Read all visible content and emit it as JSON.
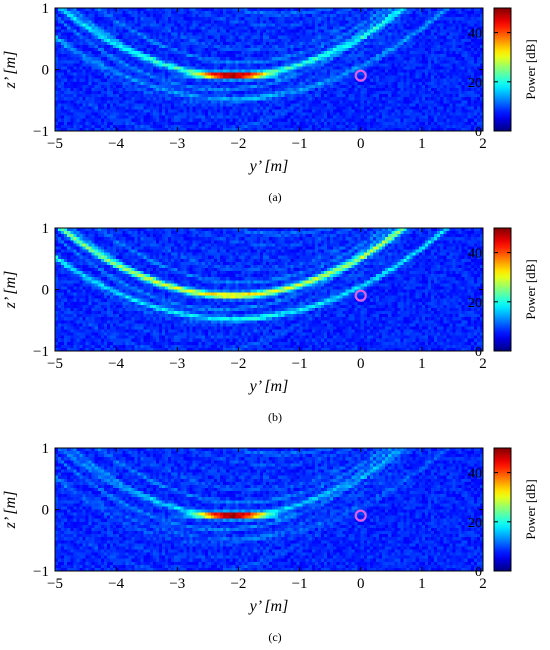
{
  "panels": [
    {
      "caption": "(a)",
      "focus_strength": 1.0,
      "arc_strength": 0.55
    },
    {
      "caption": "(b)",
      "focus_strength": 0.35,
      "arc_strength": 1.0
    },
    {
      "caption": "(c)",
      "focus_strength": 1.15,
      "arc_strength": 0.25
    }
  ],
  "chart_data": [
    {
      "type": "heatmap",
      "title": "",
      "xlabel": "y’ [m]",
      "ylabel": "z’ [m]",
      "xlim": [
        -5,
        2
      ],
      "ylim": [
        -1,
        1
      ],
      "xticks": [
        -5,
        -4,
        -3,
        -2,
        -1,
        0,
        1,
        2
      ],
      "yticks": [
        -1,
        0,
        1
      ],
      "colorbar": {
        "label": "Power [dB]",
        "range": [
          0,
          50
        ],
        "ticks": [
          0,
          20,
          40
        ],
        "colormap": "jet"
      },
      "peak": {
        "y": -2.1,
        "z": -0.1,
        "power_db": 48
      },
      "marker": {
        "y": 0.0,
        "z": -0.1,
        "shape": "circle",
        "color": "#e060e0"
      }
    },
    {
      "type": "heatmap",
      "title": "",
      "xlabel": "y’ [m]",
      "ylabel": "z’ [m]",
      "xlim": [
        -5,
        2
      ],
      "ylim": [
        -1,
        1
      ],
      "xticks": [
        -5,
        -4,
        -3,
        -2,
        -1,
        0,
        1,
        2
      ],
      "yticks": [
        -1,
        0,
        1
      ],
      "colorbar": {
        "label": "Power [dB]",
        "range": [
          0,
          50
        ],
        "ticks": [
          0,
          20,
          40
        ],
        "colormap": "jet"
      },
      "peak": {
        "y": -2.1,
        "z": -0.1,
        "power_db": 26
      },
      "marker": {
        "y": 0.0,
        "z": -0.1,
        "shape": "circle",
        "color": "#e060e0"
      }
    },
    {
      "type": "heatmap",
      "title": "",
      "xlabel": "y’ [m]",
      "ylabel": "z’ [m]",
      "xlim": [
        -5,
        2
      ],
      "ylim": [
        -1,
        1
      ],
      "xticks": [
        -5,
        -4,
        -3,
        -2,
        -1,
        0,
        1,
        2
      ],
      "yticks": [
        -1,
        0,
        1
      ],
      "colorbar": {
        "label": "Power [dB]",
        "range": [
          0,
          50
        ],
        "ticks": [
          0,
          20,
          40
        ],
        "colormap": "jet"
      },
      "peak": {
        "y": -2.1,
        "z": -0.1,
        "power_db": 49
      },
      "marker": {
        "y": 0.0,
        "z": -0.1,
        "shape": "circle",
        "color": "#e060e0"
      }
    }
  ]
}
